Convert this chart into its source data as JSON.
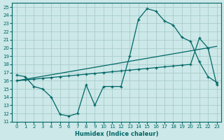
{
  "xlabel": "Humidex (Indice chaleur)",
  "bg_color": "#cce8e8",
  "grid_color": "#aacccc",
  "line_color": "#006666",
  "xlim": [
    -0.5,
    23.5
  ],
  "ylim": [
    11,
    25.5
  ],
  "xticks": [
    0,
    1,
    2,
    3,
    4,
    5,
    6,
    7,
    8,
    9,
    10,
    11,
    12,
    13,
    14,
    15,
    16,
    17,
    18,
    19,
    20,
    21,
    22,
    23
  ],
  "yticks": [
    11,
    12,
    13,
    14,
    15,
    16,
    17,
    18,
    19,
    20,
    21,
    22,
    23,
    24,
    25
  ],
  "curve1_x": [
    0,
    1,
    2,
    3,
    4,
    5,
    6,
    7,
    8,
    9,
    10,
    11,
    12,
    13,
    14,
    15,
    16,
    17,
    18,
    19,
    20,
    21,
    22,
    23
  ],
  "curve1_y": [
    16.7,
    16.5,
    15.3,
    15.0,
    14.0,
    11.9,
    11.7,
    12.0,
    15.5,
    13.0,
    15.3,
    15.3,
    15.3,
    19.0,
    23.5,
    24.8,
    24.5,
    23.3,
    22.8,
    21.3,
    20.8,
    18.3,
    16.5,
    15.8
  ],
  "curve2_x": [
    0,
    1,
    2,
    3,
    4,
    5,
    6,
    7,
    8,
    9,
    10,
    11,
    12,
    13,
    14,
    15,
    16,
    17,
    18,
    19,
    20,
    21,
    22,
    23
  ],
  "curve2_y": [
    16.0,
    16.1,
    16.2,
    16.3,
    16.4,
    16.5,
    16.6,
    16.7,
    16.8,
    16.9,
    17.0,
    17.1,
    17.2,
    17.3,
    17.4,
    17.5,
    17.6,
    17.7,
    17.8,
    17.9,
    18.0,
    21.2,
    20.0,
    15.5
  ],
  "curve3_x": [
    0,
    23
  ],
  "curve3_y": [
    16.0,
    20.2
  ]
}
